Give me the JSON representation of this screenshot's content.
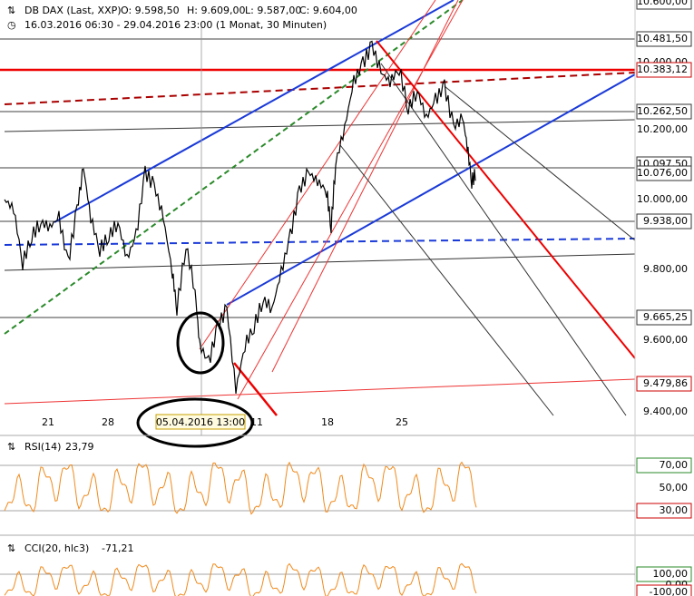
{
  "header": {
    "title": "DB DAX (Last, XXP)",
    "open": "O: 9.598,50",
    "high": "H: 9.609,00",
    "low": "L: 9.587,00",
    "close": "C: 9.604,00",
    "range": "16.03.2016 06:30 - 29.04.2016 23:00 (1 Monat, 30 Minuten)"
  },
  "price_axis": {
    "labels": [
      "10.600,00",
      "10.481,50",
      "10.400,00",
      "10.383,12",
      "10.262,50",
      "10.200,00",
      "10.097,50",
      "10.076,00",
      "10.000,00",
      "9.938,00",
      "9.800,00",
      "9.665,25",
      "9.600,00",
      "9.479,86",
      "9.400,00"
    ]
  },
  "date_axis": {
    "labels": [
      "21",
      "28",
      "05.04.2016 13:00",
      "11",
      "18",
      "25"
    ]
  },
  "rsi": {
    "name": "RSI(14)",
    "value": "23,79",
    "labels": [
      "70,00",
      "50,00",
      "30,00"
    ]
  },
  "cci": {
    "name": "CCI(20, hlc3)",
    "value": "-71,21",
    "labels": [
      "100,00",
      "0,00",
      "-100,00"
    ]
  }
}
